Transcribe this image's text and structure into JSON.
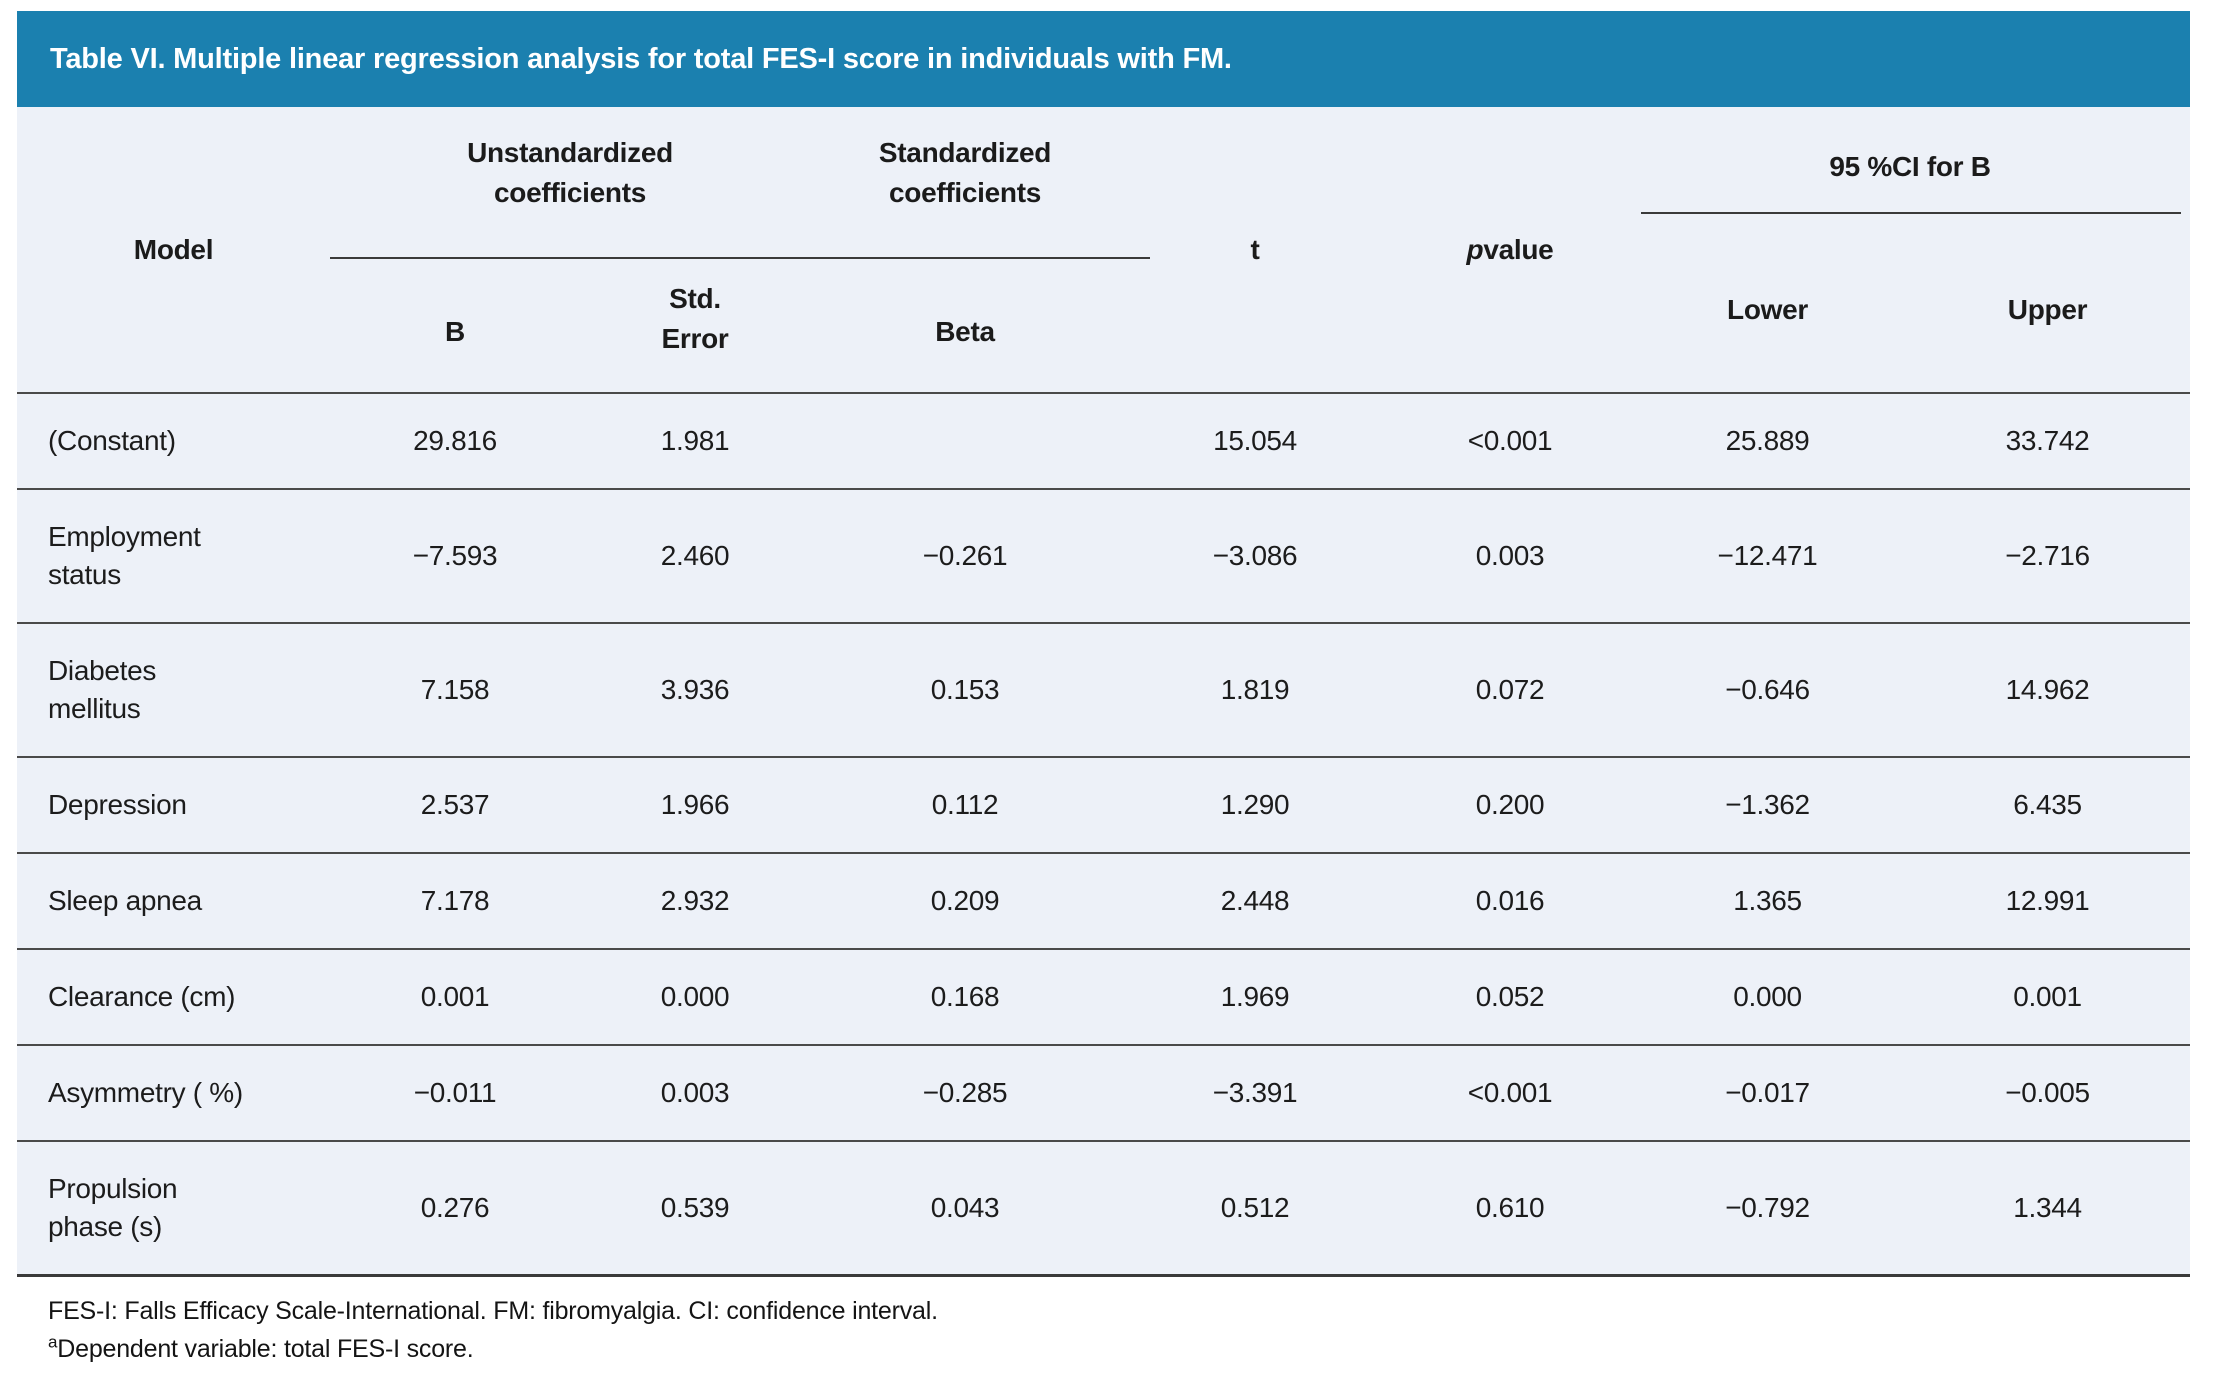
{
  "title": "Table VI. Multiple linear regression analysis for total FES-I score in individuals with FM.",
  "header": {
    "model": "Model",
    "group_unstandardized": "Unstandardized\ncoefficients",
    "group_standardized": "Standardized\ncoefficients",
    "t": "t",
    "p_italic": "p",
    "p_rest": " value",
    "ci_group": "95 %CI for B",
    "sub_b": "B",
    "sub_std_error": "Std.\nError",
    "sub_beta": "Beta",
    "sub_lower": "Lower",
    "sub_upper": "Upper"
  },
  "rows": [
    {
      "model": "(Constant)",
      "b": "29.816",
      "std_error": "1.981",
      "beta": "",
      "t": "15.054",
      "p": "<0.001",
      "lower": "25.889",
      "upper": "33.742"
    },
    {
      "model": "Employment\nstatus",
      "b": "−7.593",
      "std_error": "2.460",
      "beta": "−0.261",
      "t": "−3.086",
      "p": "0.003",
      "lower": "−12.471",
      "upper": "−2.716"
    },
    {
      "model": "Diabetes\nmellitus",
      "b": "7.158",
      "std_error": "3.936",
      "beta": "0.153",
      "t": "1.819",
      "p": "0.072",
      "lower": "−0.646",
      "upper": "14.962"
    },
    {
      "model": "Depression",
      "b": "2.537",
      "std_error": "1.966",
      "beta": "0.112",
      "t": "1.290",
      "p": "0.200",
      "lower": "−1.362",
      "upper": "6.435"
    },
    {
      "model": "Sleep apnea",
      "b": "7.178",
      "std_error": "2.932",
      "beta": "0.209",
      "t": "2.448",
      "p": "0.016",
      "lower": "1.365",
      "upper": "12.991"
    },
    {
      "model": "Clearance (cm)",
      "b": "0.001",
      "std_error": "0.000",
      "beta": "0.168",
      "t": "1.969",
      "p": "0.052",
      "lower": "0.000",
      "upper": "0.001"
    },
    {
      "model": "Asymmetry ( %)",
      "b": "−0.011",
      "std_error": "0.003",
      "beta": "−0.285",
      "t": "−3.391",
      "p": "<0.001",
      "lower": "−0.017",
      "upper": "−0.005"
    },
    {
      "model": "Propulsion\nphase (s)",
      "b": "0.276",
      "std_error": "0.539",
      "beta": "0.043",
      "t": "0.512",
      "p": "0.610",
      "lower": "−0.792",
      "upper": "1.344"
    }
  ],
  "footnotes": {
    "line1": "FES-I: Falls Efficacy Scale-International. FM: fibromyalgia. CI: confidence interval.",
    "line2_sup": "a",
    "line2": "Dependent variable: total FES-I score."
  },
  "colors": {
    "header_bar": "#1b80af",
    "table_background": "#edf1f8",
    "rule_line": "#3a3a3a",
    "title_text": "#ffffff"
  }
}
